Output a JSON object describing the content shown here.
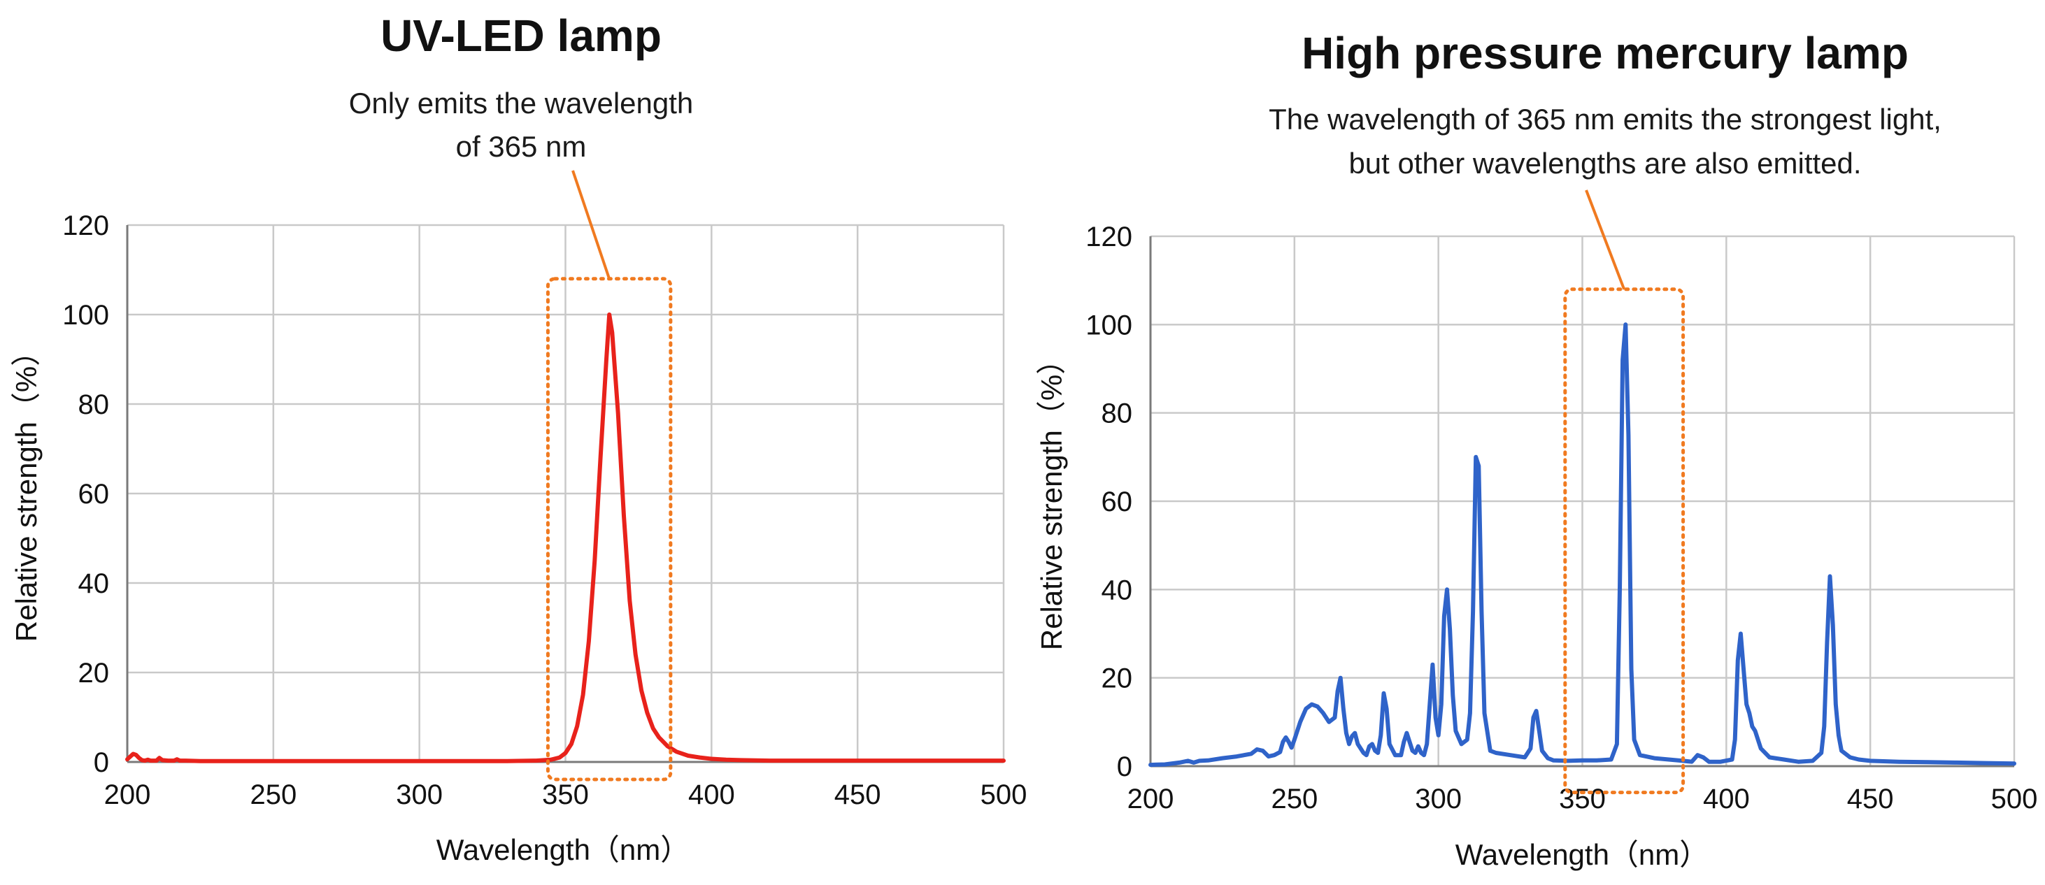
{
  "chart_data": [
    {
      "type": "line",
      "title": "UV-LED lamp",
      "annotation": [
        "Only emits the wavelength",
        "of 365 nm"
      ],
      "xlabel": "Wavelength（nm）",
      "ylabel": "Relative strength（%）",
      "xlim": [
        200,
        500
      ],
      "ylim": [
        0,
        120
      ],
      "xticks": [
        "200",
        "250",
        "300",
        "350",
        "400",
        "450",
        "500"
      ],
      "yticks": [
        "0",
        "20",
        "40",
        "60",
        "80",
        "100",
        "120"
      ],
      "highlight_range_nm": [
        344,
        386
      ],
      "highlight_ylim": [
        0,
        108
      ],
      "color": "#e8221b",
      "series": [
        {
          "name": "UV-LED",
          "x": [
            200,
            201,
            202,
            203,
            204,
            205,
            206,
            207,
            208,
            210,
            211,
            212,
            214,
            216,
            217,
            218,
            220,
            225,
            230,
            240,
            250,
            260,
            270,
            280,
            290,
            300,
            310,
            320,
            330,
            340,
            345,
            348,
            350,
            352,
            354,
            356,
            358,
            360,
            362,
            364,
            365,
            366,
            368,
            370,
            372,
            374,
            376,
            378,
            380,
            382,
            385,
            388,
            392,
            396,
            400,
            405,
            410,
            420,
            430,
            450,
            470,
            500
          ],
          "y": [
            0.6,
            1.2,
            1.8,
            1.6,
            0.9,
            0.4,
            0.3,
            0.5,
            0.3,
            0.3,
            0.9,
            0.4,
            0.3,
            0.3,
            0.6,
            0.3,
            0.3,
            0.2,
            0.2,
            0.2,
            0.2,
            0.2,
            0.2,
            0.2,
            0.2,
            0.2,
            0.2,
            0.2,
            0.2,
            0.3,
            0.5,
            1.0,
            2.0,
            4.0,
            8.0,
            15.0,
            27.0,
            45.0,
            68.0,
            90.0,
            100.0,
            96.0,
            78.0,
            55.0,
            36.0,
            24.0,
            16.0,
            11.0,
            7.5,
            5.5,
            3.5,
            2.3,
            1.4,
            1.0,
            0.7,
            0.5,
            0.4,
            0.3,
            0.3,
            0.3,
            0.3,
            0.3
          ]
        }
      ]
    },
    {
      "type": "line",
      "title": "High pressure mercury lamp",
      "annotation": [
        "The wavelength of 365 nm emits the strongest light,",
        "but other wavelengths are also emitted."
      ],
      "xlabel": "Wavelength（nm）",
      "ylabel": "Relative strength（%）",
      "xlim": [
        200,
        500
      ],
      "ylim": [
        0,
        120
      ],
      "xticks": [
        "200",
        "250",
        "300",
        "350",
        "400",
        "450",
        "500"
      ],
      "yticks": [
        "0",
        "20",
        "40",
        "60",
        "80",
        "100",
        "120"
      ],
      "highlight_range_nm": [
        344,
        385
      ],
      "highlight_ylim": [
        -2,
        108
      ],
      "color": "#2f63c9",
      "series": [
        {
          "name": "High pressure mercury lamp",
          "x": [
            200,
            205,
            210,
            213,
            215,
            217,
            220,
            225,
            230,
            235,
            237,
            239,
            241,
            243,
            245,
            246,
            247,
            248,
            249,
            250,
            252,
            254,
            256,
            258,
            260,
            262,
            264,
            265,
            266,
            267,
            268,
            269,
            270,
            271,
            272,
            274,
            275,
            276,
            277,
            278,
            279,
            280,
            281,
            282,
            283,
            285,
            287,
            288,
            289,
            290,
            291,
            292,
            293,
            294,
            295,
            296,
            297,
            298,
            299,
            300,
            301,
            302,
            303,
            304,
            305,
            306,
            308,
            310,
            311,
            312,
            313,
            314,
            315,
            316,
            318,
            320,
            325,
            330,
            332,
            333,
            334,
            335,
            336,
            338,
            340,
            345,
            350,
            355,
            360,
            362,
            363,
            364,
            365,
            366,
            367,
            368,
            370,
            375,
            380,
            385,
            388,
            390,
            392,
            394,
            398,
            402,
            403,
            404,
            405,
            406,
            407,
            408,
            409,
            410,
            412,
            415,
            420,
            425,
            430,
            433,
            434,
            435,
            436,
            437,
            438,
            439,
            440,
            443,
            446,
            450,
            460,
            470,
            480,
            490,
            500
          ],
          "y": [
            0.3,
            0.4,
            0.8,
            1.2,
            0.8,
            1.2,
            1.3,
            1.8,
            2.2,
            2.8,
            3.8,
            3.5,
            2.2,
            2.5,
            3.2,
            5.5,
            6.5,
            5.5,
            4.2,
            6.0,
            10.0,
            13.0,
            14.0,
            13.5,
            12.0,
            10.0,
            11.0,
            17.0,
            20.0,
            13.0,
            7.5,
            5.0,
            6.8,
            7.5,
            5.0,
            3.0,
            2.5,
            4.5,
            5.0,
            3.5,
            3.0,
            7.0,
            16.5,
            13.0,
            5.0,
            2.5,
            2.5,
            5.5,
            7.5,
            5.5,
            3.5,
            3.0,
            4.5,
            3.0,
            2.5,
            5.0,
            14.0,
            23.0,
            11.0,
            7.0,
            14.0,
            34.0,
            40.0,
            31.0,
            16.0,
            8.0,
            5.0,
            6.0,
            12.0,
            35.0,
            70.0,
            68.0,
            35.0,
            12.0,
            3.5,
            3.0,
            2.5,
            2.0,
            4.0,
            11.0,
            12.5,
            8.0,
            3.5,
            1.8,
            1.3,
            1.2,
            1.3,
            1.3,
            1.5,
            5.0,
            40.0,
            92.0,
            100.0,
            75.0,
            22.0,
            6.0,
            2.5,
            1.8,
            1.5,
            1.2,
            1.0,
            2.5,
            2.0,
            1.0,
            1.0,
            1.5,
            6.0,
            24.0,
            30.0,
            22.0,
            14.0,
            12.0,
            9.0,
            8.0,
            4.0,
            2.0,
            1.5,
            1.0,
            1.2,
            3.0,
            9.0,
            28.0,
            43.0,
            32.0,
            14.0,
            7.0,
            3.5,
            2.0,
            1.5,
            1.2,
            1.0,
            0.9,
            0.8,
            0.7,
            0.6
          ]
        }
      ]
    }
  ]
}
